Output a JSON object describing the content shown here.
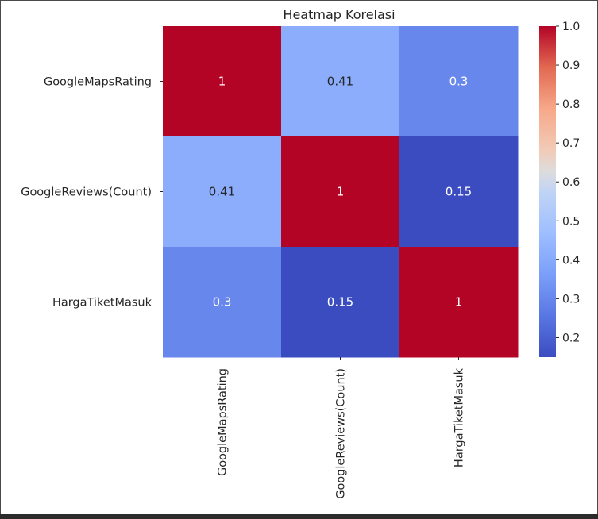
{
  "chart_data": {
    "type": "heatmap",
    "title": "Heatmap Korelasi",
    "row_labels": [
      "GoogleMapsRating",
      "GoogleReviews(Count)",
      "HargaTiketMasuk"
    ],
    "col_labels": [
      "GoogleMapsRating",
      "GoogleReviews(Count)",
      "HargaTiketMasuk"
    ],
    "values": [
      [
        1,
        0.41,
        0.3
      ],
      [
        0.41,
        1,
        0.15
      ],
      [
        0.3,
        0.15,
        1
      ]
    ],
    "annotations": [
      [
        "1",
        "0.41",
        "0.3"
      ],
      [
        "0.41",
        "1",
        "0.15"
      ],
      [
        "0.3",
        "0.15",
        "1"
      ]
    ],
    "colormap": "coolwarm",
    "colorbar": {
      "vmin": 0.15,
      "vmax": 1.0,
      "ticks": [
        1.0,
        0.9,
        0.8,
        0.7,
        0.6,
        0.5,
        0.4,
        0.3,
        0.2
      ],
      "tick_labels": [
        "1.0",
        "0.9",
        "0.8",
        "0.7",
        "0.6",
        "0.5",
        "0.4",
        "0.3",
        "0.2"
      ]
    }
  }
}
